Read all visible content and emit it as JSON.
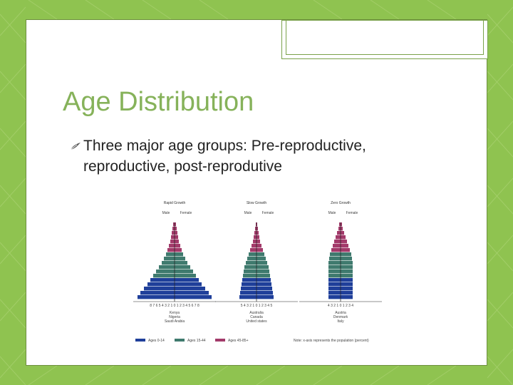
{
  "slide": {
    "title": "Age Distribution",
    "bullets": [
      {
        "icon": "leaf-bullet-icon",
        "text": "Three major age groups: Pre-reproductive, reproductive, post-reprodutive"
      }
    ]
  },
  "theme": {
    "background": "#8fc350",
    "title_color": "#86b25a",
    "slide_border": "#6e8f3f"
  },
  "figure": {
    "panels": [
      {
        "title": "Rapid Growth",
        "male": "Male",
        "female": "Female",
        "axis_ticks": "8 7 6 5 4 3 2 1 0 1 2 3 4 5 6 7 8",
        "countries": [
          "Kenya",
          "Nigeria",
          "Saudi Arabia"
        ]
      },
      {
        "title": "Slow Growth",
        "male": "Male",
        "female": "Female",
        "axis_ticks": "5 4 3 2 1 0 1 2 3 4 5",
        "countries": [
          "Australia",
          "Canada",
          "United states"
        ]
      },
      {
        "title": "Zero Growth",
        "male": "Male",
        "female": "Female",
        "axis_ticks": "4 3 2 1 0 1 2 3 4",
        "countries": [
          "Austria",
          "Denmark",
          "Italy"
        ]
      }
    ],
    "legend": [
      {
        "label": "Ages 0-14",
        "color": "#1f3f9a"
      },
      {
        "label": "Ages 15-44",
        "color": "#3f7a6e"
      },
      {
        "label": "Ages 45-85+",
        "color": "#a23a6a"
      }
    ],
    "note": "Note: x-axis represents the population (percent)"
  }
}
